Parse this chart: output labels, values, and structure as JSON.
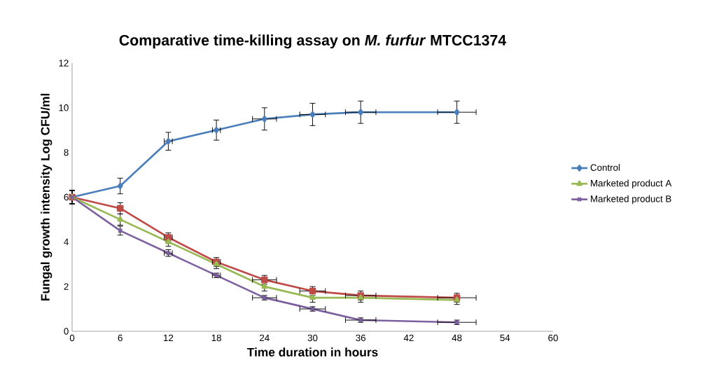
{
  "chart_data": {
    "type": "line",
    "title": "Comparative time-killing assay on *M. furfur* MTCC1374",
    "xlabel": "Time duration in hours",
    "ylabel": "Fungal growth intensity  Log CFU/ml",
    "x": [
      0,
      6,
      12,
      18,
      24,
      30,
      36,
      48
    ],
    "xlim": [
      0,
      60
    ],
    "xticks": [
      0,
      6,
      12,
      18,
      24,
      30,
      36,
      42,
      48,
      54,
      60
    ],
    "ylim": [
      0,
      12
    ],
    "yticks": [
      0,
      2,
      4,
      6,
      8,
      10,
      12
    ],
    "legend": "right",
    "line_style": "solid",
    "series": [
      {
        "name": "Control",
        "color": "#4a7ebb",
        "marker": "diamond",
        "values": [
          6,
          6.5,
          8.5,
          9,
          9.5,
          9.7,
          9.8,
          9.8
        ],
        "errors": [
          0.3,
          0.35,
          0.4,
          0.45,
          0.5,
          0.5,
          0.5,
          0.5
        ],
        "xerrors": [
          null,
          null,
          0.5,
          0.5,
          1.5,
          1.6,
          1.9,
          2.4
        ]
      },
      {
        "color": "#be4b48",
        "marker": "square",
        "values": [
          6,
          5.5,
          4.2,
          3.1,
          2.3,
          1.8,
          1.6,
          1.5
        ],
        "errors": [
          0.3,
          0.25,
          0.2,
          0.2,
          0.2,
          0.2,
          0.2,
          0.2
        ],
        "xerrors": [
          null,
          null,
          0.5,
          0.5,
          1.5,
          1.6,
          1.9,
          2.4
        ]
      },
      {
        "name": "Marketed product A",
        "color": "#98b954",
        "marker": "triangle",
        "values": [
          6,
          5,
          4,
          3,
          2,
          1.5,
          1.5,
          1.4
        ],
        "errors": [
          0.3,
          0.25,
          0.2,
          0.2,
          0.2,
          0.2,
          0.2,
          0.2
        ]
      },
      {
        "name": "Marketed product B",
        "color": "#7d60a0",
        "marker": "cross",
        "values": [
          6,
          4.5,
          3.5,
          2.5,
          1.5,
          1,
          0.5,
          0.4
        ],
        "errors": [
          0.3,
          0.2,
          0.15,
          0.1,
          0.1,
          0.1,
          0.1,
          0.1
        ],
        "xerrors": [
          null,
          null,
          0.5,
          0.5,
          1.5,
          1.6,
          1.9,
          2.4
        ]
      }
    ]
  }
}
